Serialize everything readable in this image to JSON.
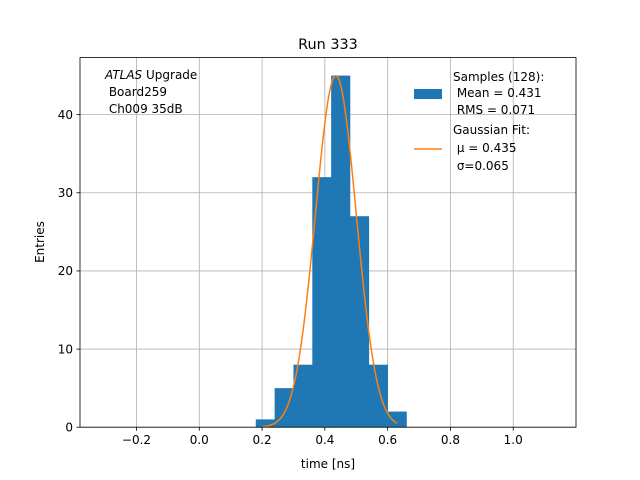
{
  "chart_data": {
    "type": "bar",
    "title": "Run 333",
    "xlabel": "time [ns]",
    "ylabel": "Entries",
    "xlim": [
      -0.38,
      1.2
    ],
    "ylim": [
      0,
      47.3
    ],
    "grid": true,
    "xticks": [
      -0.2,
      0.0,
      0.2,
      0.4,
      0.6,
      0.8,
      1.0
    ],
    "xtick_labels": [
      "−0.2",
      "0.0",
      "0.2",
      "0.4",
      "0.6",
      "0.8",
      "1.0"
    ],
    "yticks": [
      0,
      10,
      20,
      30,
      40
    ],
    "ytick_labels": [
      "0",
      "10",
      "20",
      "30",
      "40"
    ],
    "histogram": {
      "bin_edges": [
        0.18,
        0.24,
        0.3,
        0.36,
        0.42,
        0.48,
        0.54,
        0.6,
        0.66
      ],
      "counts": [
        1,
        5,
        8,
        32,
        45,
        27,
        8,
        2
      ],
      "color": "#1f77b4"
    },
    "fit": {
      "type": "gaussian",
      "mu": 0.435,
      "sigma": 0.065,
      "amplitude": 45,
      "x_range": [
        0.2,
        0.63
      ],
      "color": "#ff7f0e"
    },
    "annotation": {
      "italic": "ATLAS",
      "line1_rest": " Upgrade",
      "line2": " Board259",
      "line3": " Ch009 35dB"
    },
    "legend": {
      "placement": "top-right",
      "samples": [
        "Samples (128):",
        " Mean = 0.431",
        " RMS = 0.071"
      ],
      "fit": [
        "Gaussian Fit:",
        " μ = 0.435",
        " σ=0.065"
      ]
    }
  }
}
